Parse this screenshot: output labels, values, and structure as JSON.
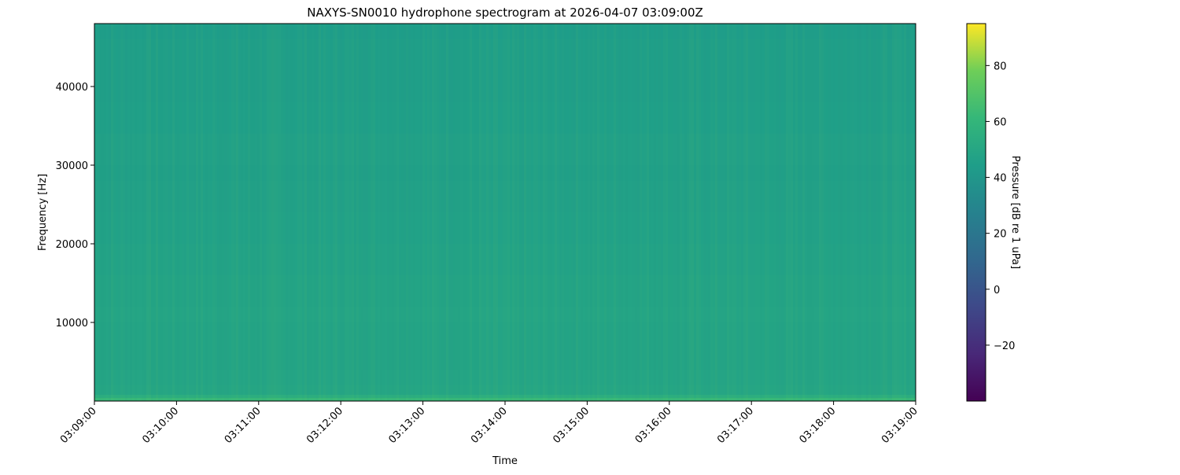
{
  "chart_data": {
    "type": "heatmap",
    "title": "NAXYS-SN0010 hydrophone spectrogram at 2026-04-07 03:09:00Z",
    "xlabel": "Time",
    "ylabel": "Frequency [Hz]",
    "x_ticks": [
      "03:09:00",
      "03:10:00",
      "03:11:00",
      "03:12:00",
      "03:13:00",
      "03:14:00",
      "03:15:00",
      "03:16:00",
      "03:17:00",
      "03:18:00",
      "03:19:00"
    ],
    "xlim": [
      "03:09:00",
      "03:19:00"
    ],
    "y_ticks": [
      10000,
      20000,
      30000,
      40000
    ],
    "ylim": [
      0,
      48000
    ],
    "colorbar": {
      "label": "Pressure [dB re 1 uPa]",
      "colormap": "viridis",
      "range": [
        -40,
        95
      ],
      "ticks": [
        -20,
        0,
        20,
        40,
        60,
        80
      ]
    },
    "frequency_profile_hz": [
      0,
      400,
      800,
      2000,
      4000,
      8000,
      10000,
      12000,
      16000,
      20000,
      24000,
      28000,
      30000,
      34000,
      38000,
      42000,
      46000
    ],
    "frequency_profile_db": [
      62,
      55,
      50,
      49,
      48.5,
      48.5,
      49,
      48.5,
      47.5,
      47,
      46.5,
      46,
      46.5,
      45.5,
      45,
      45,
      44.5
    ]
  }
}
